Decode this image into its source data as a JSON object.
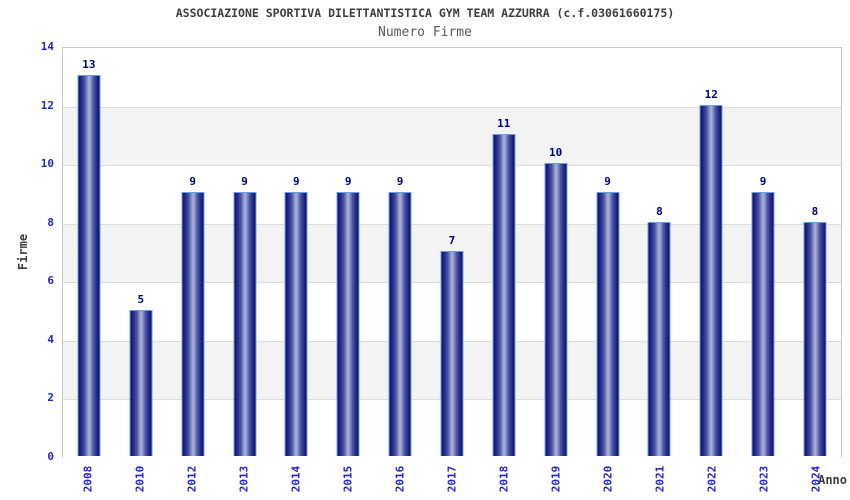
{
  "chart_data": {
    "type": "bar",
    "title": "ASSOCIAZIONE SPORTIVA DILETTANTISTICA GYM TEAM AZZURRA (c.f.03061660175)",
    "subtitle": "Numero Firme",
    "categories": [
      "2008",
      "2010",
      "2012",
      "2013",
      "2014",
      "2015",
      "2016",
      "2017",
      "2018",
      "2019",
      "2020",
      "2021",
      "2022",
      "2023",
      "2024"
    ],
    "values": [
      13,
      5,
      9,
      9,
      9,
      9,
      9,
      7,
      11,
      10,
      9,
      8,
      12,
      9,
      8
    ],
    "xlabel": "Anno",
    "ylabel": "Firme",
    "ylim": [
      0,
      14
    ],
    "yticks": [
      0,
      2,
      4,
      6,
      8,
      10,
      12,
      14
    ],
    "grid": "horizontal alternating bands every 2 units, gray on 2-4, 6-8, 10-12",
    "legend": "none",
    "bar_labels_shown": true
  },
  "colors": {
    "tick_label_blue": "#2424cc",
    "bar_value_navy": "#00007d",
    "bar_edge_dark": "#14146e",
    "bar_center_light": "#a9b1dc",
    "bar_outline_lightblue": "#63a0e6",
    "band_gray": "#f3f3f3",
    "grid_line": "#dcdcdc",
    "plot_border": "#c9c9c9",
    "title_color": "#3d3d3d",
    "subtitle_color": "#5a5a5a",
    "background": "#ffffff"
  }
}
